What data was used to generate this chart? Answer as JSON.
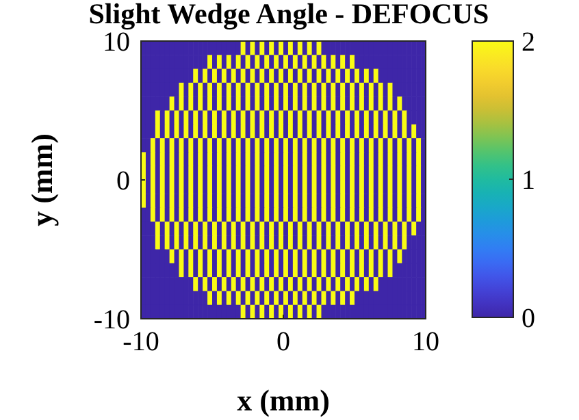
{
  "chart_data": {
    "type": "heatmap",
    "title": "Slight Wedge Angle - DEFOCUS",
    "xlabel": "x (mm)",
    "ylabel": "y (mm)",
    "xlim": [
      -10,
      10
    ],
    "ylim": [
      -10,
      10
    ],
    "xticks": [
      -10,
      0,
      10
    ],
    "yticks": [
      -10,
      0,
      10
    ],
    "clim": [
      0,
      2
    ],
    "cticks": [
      0,
      1,
      2
    ],
    "cells": [
      [
        0,
        0,
        0,
        0,
        0,
        0,
        0,
        0,
        0,
        0,
        0,
        0,
        0,
        0,
        0,
        0,
        0,
        0,
        0,
        0,
        0,
        2,
        0,
        2,
        0,
        2,
        0,
        2,
        0,
        2,
        0,
        2,
        0,
        2,
        0,
        2,
        0,
        2,
        0,
        0,
        0,
        0,
        0,
        0,
        0,
        0,
        0,
        0,
        0,
        0,
        0,
        0,
        0,
        0,
        0,
        0,
        0,
        0,
        0,
        0
      ],
      [
        0,
        0,
        0,
        0,
        0,
        0,
        0,
        0,
        0,
        0,
        0,
        0,
        0,
        0,
        2,
        0,
        2,
        0,
        2,
        0,
        2,
        0,
        2,
        0,
        2,
        0,
        2,
        0,
        2,
        0,
        2,
        0,
        2,
        0,
        2,
        0,
        2,
        0,
        2,
        0,
        2,
        0,
        2,
        0,
        2,
        0,
        0,
        0,
        0,
        0,
        0,
        0,
        0,
        0,
        0,
        0,
        0,
        0,
        0,
        0
      ],
      [
        0,
        0,
        0,
        0,
        0,
        0,
        0,
        0,
        0,
        0,
        0,
        2,
        0,
        2,
        0,
        2,
        0,
        2,
        0,
        2,
        0,
        2,
        0,
        2,
        0,
        2,
        0,
        2,
        0,
        2,
        0,
        2,
        0,
        2,
        0,
        2,
        0,
        2,
        0,
        2,
        0,
        2,
        0,
        2,
        0,
        2,
        0,
        2,
        0,
        2,
        0,
        0,
        0,
        0,
        0,
        0,
        0,
        0,
        0,
        0
      ],
      [
        0,
        0,
        0,
        0,
        0,
        0,
        0,
        0,
        2,
        0,
        2,
        0,
        2,
        0,
        2,
        0,
        2,
        0,
        2,
        0,
        2,
        0,
        2,
        0,
        2,
        0,
        2,
        0,
        2,
        0,
        2,
        0,
        2,
        0,
        2,
        0,
        2,
        0,
        2,
        0,
        2,
        0,
        2,
        0,
        2,
        0,
        2,
        0,
        2,
        0,
        2,
        0,
        2,
        0,
        0,
        0,
        0,
        0,
        0,
        0
      ],
      [
        0,
        0,
        0,
        0,
        0,
        0,
        2,
        0,
        2,
        0,
        2,
        0,
        2,
        0,
        2,
        0,
        2,
        0,
        2,
        0,
        2,
        0,
        2,
        0,
        2,
        0,
        2,
        0,
        2,
        0,
        2,
        0,
        2,
        0,
        2,
        0,
        2,
        0,
        2,
        0,
        2,
        0,
        2,
        0,
        2,
        0,
        2,
        0,
        2,
        0,
        2,
        0,
        2,
        0,
        2,
        0,
        0,
        0,
        0,
        0
      ],
      [
        0,
        0,
        0,
        2,
        0,
        2,
        0,
        2,
        0,
        2,
        0,
        2,
        0,
        2,
        0,
        2,
        0,
        2,
        0,
        2,
        0,
        2,
        0,
        2,
        0,
        2,
        0,
        2,
        0,
        2,
        0,
        2,
        0,
        2,
        0,
        2,
        0,
        2,
        0,
        2,
        0,
        2,
        0,
        2,
        0,
        2,
        0,
        2,
        0,
        2,
        0,
        2,
        0,
        2,
        0,
        2,
        0,
        0,
        0,
        0
      ],
      [
        0,
        0,
        0,
        2,
        0,
        2,
        0,
        2,
        0,
        2,
        0,
        2,
        0,
        2,
        0,
        2,
        0,
        2,
        0,
        2,
        0,
        2,
        0,
        2,
        0,
        2,
        0,
        2,
        0,
        2,
        0,
        2,
        0,
        2,
        0,
        2,
        0,
        2,
        0,
        2,
        0,
        2,
        0,
        2,
        0,
        2,
        0,
        2,
        0,
        2,
        0,
        2,
        0,
        2,
        0,
        2,
        0,
        2,
        0,
        0
      ],
      [
        0,
        0,
        2,
        0,
        2,
        0,
        2,
        0,
        2,
        0,
        2,
        0,
        2,
        0,
        2,
        0,
        2,
        0,
        2,
        0,
        2,
        0,
        2,
        0,
        2,
        0,
        2,
        0,
        2,
        0,
        2,
        0,
        2,
        0,
        2,
        0,
        2,
        0,
        2,
        0,
        2,
        0,
        2,
        0,
        2,
        0,
        2,
        0,
        2,
        0,
        2,
        0,
        2,
        0,
        2,
        0,
        2,
        0,
        2,
        0
      ],
      [
        2,
        0,
        2,
        0,
        2,
        0,
        2,
        0,
        2,
        0,
        2,
        0,
        2,
        0,
        2,
        0,
        2,
        0,
        2,
        0,
        2,
        0,
        2,
        0,
        2,
        0,
        2,
        0,
        2,
        0,
        2,
        0,
        2,
        0,
        2,
        0,
        2,
        0,
        2,
        0,
        2,
        0,
        2,
        0,
        2,
        0,
        2,
        0,
        2,
        0,
        2,
        0,
        2,
        0,
        2,
        0,
        2,
        0,
        2,
        0
      ],
      [
        2,
        0,
        2,
        0,
        2,
        0,
        2,
        0,
        2,
        0,
        2,
        0,
        2,
        0,
        2,
        0,
        2,
        0,
        2,
        0,
        2,
        0,
        2,
        0,
        2,
        0,
        2,
        0,
        2,
        0,
        2,
        0,
        2,
        0,
        2,
        0,
        2,
        0,
        2,
        0,
        2,
        0,
        2,
        0,
        2,
        0,
        2,
        0,
        2,
        0,
        2,
        0,
        2,
        0,
        2,
        0,
        2,
        0,
        2,
        0
      ],
      [
        2,
        0,
        2,
        0,
        2,
        0,
        2,
        0,
        2,
        0,
        2,
        0,
        2,
        0,
        2,
        0,
        2,
        0,
        2,
        0,
        2,
        0,
        2,
        0,
        2,
        0,
        2,
        0,
        2,
        0,
        2,
        0,
        2,
        0,
        2,
        0,
        2,
        0,
        2,
        0,
        2,
        0,
        2,
        0,
        2,
        0,
        2,
        0,
        2,
        0,
        2,
        0,
        2,
        0,
        2,
        0,
        2,
        0,
        2,
        0
      ],
      [
        2,
        0,
        2,
        0,
        2,
        0,
        2,
        0,
        2,
        0,
        2,
        0,
        2,
        0,
        2,
        0,
        2,
        0,
        2,
        0,
        2,
        0,
        2,
        0,
        2,
        0,
        2,
        0,
        2,
        0,
        2,
        0,
        2,
        0,
        2,
        0,
        2,
        0,
        2,
        0,
        2,
        0,
        2,
        0,
        2,
        0,
        2,
        0,
        2,
        0,
        2,
        0,
        2,
        0,
        2,
        0,
        2,
        0,
        2,
        0
      ],
      [
        0,
        0,
        2,
        0,
        2,
        0,
        2,
        0,
        2,
        0,
        2,
        0,
        2,
        0,
        2,
        0,
        2,
        0,
        2,
        0,
        2,
        0,
        2,
        0,
        2,
        0,
        2,
        0,
        2,
        0,
        2,
        0,
        2,
        0,
        2,
        0,
        2,
        0,
        2,
        0,
        2,
        0,
        2,
        0,
        2,
        0,
        2,
        0,
        2,
        0,
        2,
        0,
        2,
        0,
        2,
        0,
        2,
        0,
        2,
        0
      ],
      [
        0,
        0,
        0,
        2,
        0,
        2,
        0,
        2,
        0,
        2,
        0,
        2,
        0,
        2,
        0,
        2,
        0,
        2,
        0,
        2,
        0,
        2,
        0,
        2,
        0,
        2,
        0,
        2,
        0,
        2,
        0,
        2,
        0,
        2,
        0,
        2,
        0,
        2,
        0,
        2,
        0,
        2,
        0,
        2,
        0,
        2,
        0,
        2,
        0,
        2,
        0,
        2,
        0,
        2,
        0,
        2,
        0,
        2,
        0,
        0
      ],
      [
        0,
        0,
        0,
        2,
        0,
        2,
        0,
        2,
        0,
        2,
        0,
        2,
        0,
        2,
        0,
        2,
        0,
        2,
        0,
        2,
        0,
        2,
        0,
        2,
        0,
        2,
        0,
        2,
        0,
        2,
        0,
        2,
        0,
        2,
        0,
        2,
        0,
        2,
        0,
        2,
        0,
        2,
        0,
        2,
        0,
        2,
        0,
        2,
        0,
        2,
        0,
        2,
        0,
        2,
        0,
        2,
        0,
        0,
        0,
        0
      ],
      [
        0,
        0,
        0,
        0,
        0,
        0,
        2,
        0,
        2,
        0,
        2,
        0,
        2,
        0,
        2,
        0,
        2,
        0,
        2,
        0,
        2,
        0,
        2,
        0,
        2,
        0,
        2,
        0,
        2,
        0,
        2,
        0,
        2,
        0,
        2,
        0,
        2,
        0,
        2,
        0,
        2,
        0,
        2,
        0,
        2,
        0,
        2,
        0,
        2,
        0,
        2,
        0,
        2,
        0,
        2,
        0,
        0,
        0,
        0,
        0
      ],
      [
        0,
        0,
        0,
        0,
        0,
        0,
        0,
        0,
        2,
        0,
        2,
        0,
        2,
        0,
        2,
        0,
        2,
        0,
        2,
        0,
        2,
        0,
        2,
        0,
        2,
        0,
        2,
        0,
        2,
        0,
        2,
        0,
        2,
        0,
        2,
        0,
        2,
        0,
        2,
        0,
        2,
        0,
        2,
        0,
        2,
        0,
        2,
        0,
        2,
        0,
        2,
        0,
        2,
        0,
        0,
        0,
        0,
        0,
        0,
        0
      ],
      [
        0,
        0,
        0,
        0,
        0,
        0,
        0,
        0,
        0,
        0,
        0,
        2,
        0,
        2,
        0,
        2,
        0,
        2,
        0,
        2,
        0,
        2,
        0,
        2,
        0,
        2,
        0,
        2,
        0,
        2,
        0,
        2,
        0,
        2,
        0,
        2,
        0,
        2,
        0,
        2,
        0,
        2,
        0,
        2,
        0,
        2,
        0,
        2,
        0,
        2,
        0,
        0,
        0,
        0,
        0,
        0,
        0,
        0,
        0,
        0
      ],
      [
        0,
        0,
        0,
        0,
        0,
        0,
        0,
        0,
        0,
        0,
        0,
        0,
        0,
        0,
        2,
        0,
        2,
        0,
        2,
        0,
        2,
        0,
        2,
        0,
        2,
        0,
        2,
        0,
        2,
        0,
        2,
        0,
        2,
        0,
        2,
        0,
        2,
        0,
        2,
        0,
        2,
        0,
        2,
        0,
        2,
        0,
        0,
        0,
        0,
        0,
        0,
        0,
        0,
        0,
        0,
        0,
        0,
        0,
        0,
        0
      ],
      [
        0,
        0,
        0,
        0,
        0,
        0,
        0,
        0,
        0,
        0,
        0,
        0,
        0,
        0,
        0,
        0,
        0,
        0,
        0,
        0,
        0,
        2,
        0,
        2,
        0,
        2,
        0,
        2,
        0,
        2,
        0,
        2,
        0,
        2,
        0,
        2,
        0,
        2,
        0,
        0,
        0,
        0,
        0,
        0,
        0,
        0,
        0,
        0,
        0,
        0,
        0,
        0,
        0,
        0,
        0,
        0,
        0,
        0,
        0,
        0
      ]
    ]
  }
}
